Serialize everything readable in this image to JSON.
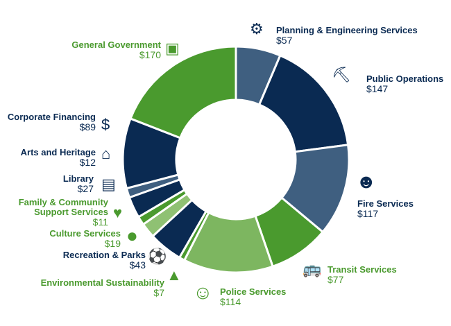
{
  "chart_data": {
    "type": "pie",
    "donut": true,
    "start": "top, clockwise",
    "categories": [
      "Planning & Engineering Services",
      "Public Operations",
      "Fire Services",
      "Transit Services",
      "Police Services",
      "Environmental Sustainability",
      "Recreation & Parks",
      "Culture Services",
      "Family & Community Support Services",
      "Library",
      "Arts and Heritage",
      "Corporate Financing",
      "General Government"
    ],
    "values": [
      57,
      147,
      117,
      77,
      114,
      7,
      43,
      19,
      11,
      27,
      12,
      89,
      170
    ],
    "value_labels": [
      "$57",
      "$147",
      "$117",
      "$77",
      "$114",
      "$7",
      "$43",
      "$19",
      "$11",
      "$27",
      "$12",
      "$89",
      "$170"
    ],
    "colors": [
      "#3f5f80",
      "#0a2a52",
      "#3f5f80",
      "#4a9a2e",
      "#7db660",
      "#4a9a2e",
      "#0a2a52",
      "#8fc173",
      "#4a9a2e",
      "#0a2a52",
      "#3f5f80",
      "#0a2a52",
      "#4a9a2e"
    ],
    "icons": [
      "gear-icon",
      "worker-shovel-icon",
      "firefighter-icon",
      "bus-icon",
      "police-officer-icon",
      "tree-icon",
      "soccer-player-icon",
      "palette-icon",
      "hands-heart-icon",
      "book-icon",
      "schoolhouse-icon",
      "money-icon",
      "id-badge-icon"
    ]
  }
}
